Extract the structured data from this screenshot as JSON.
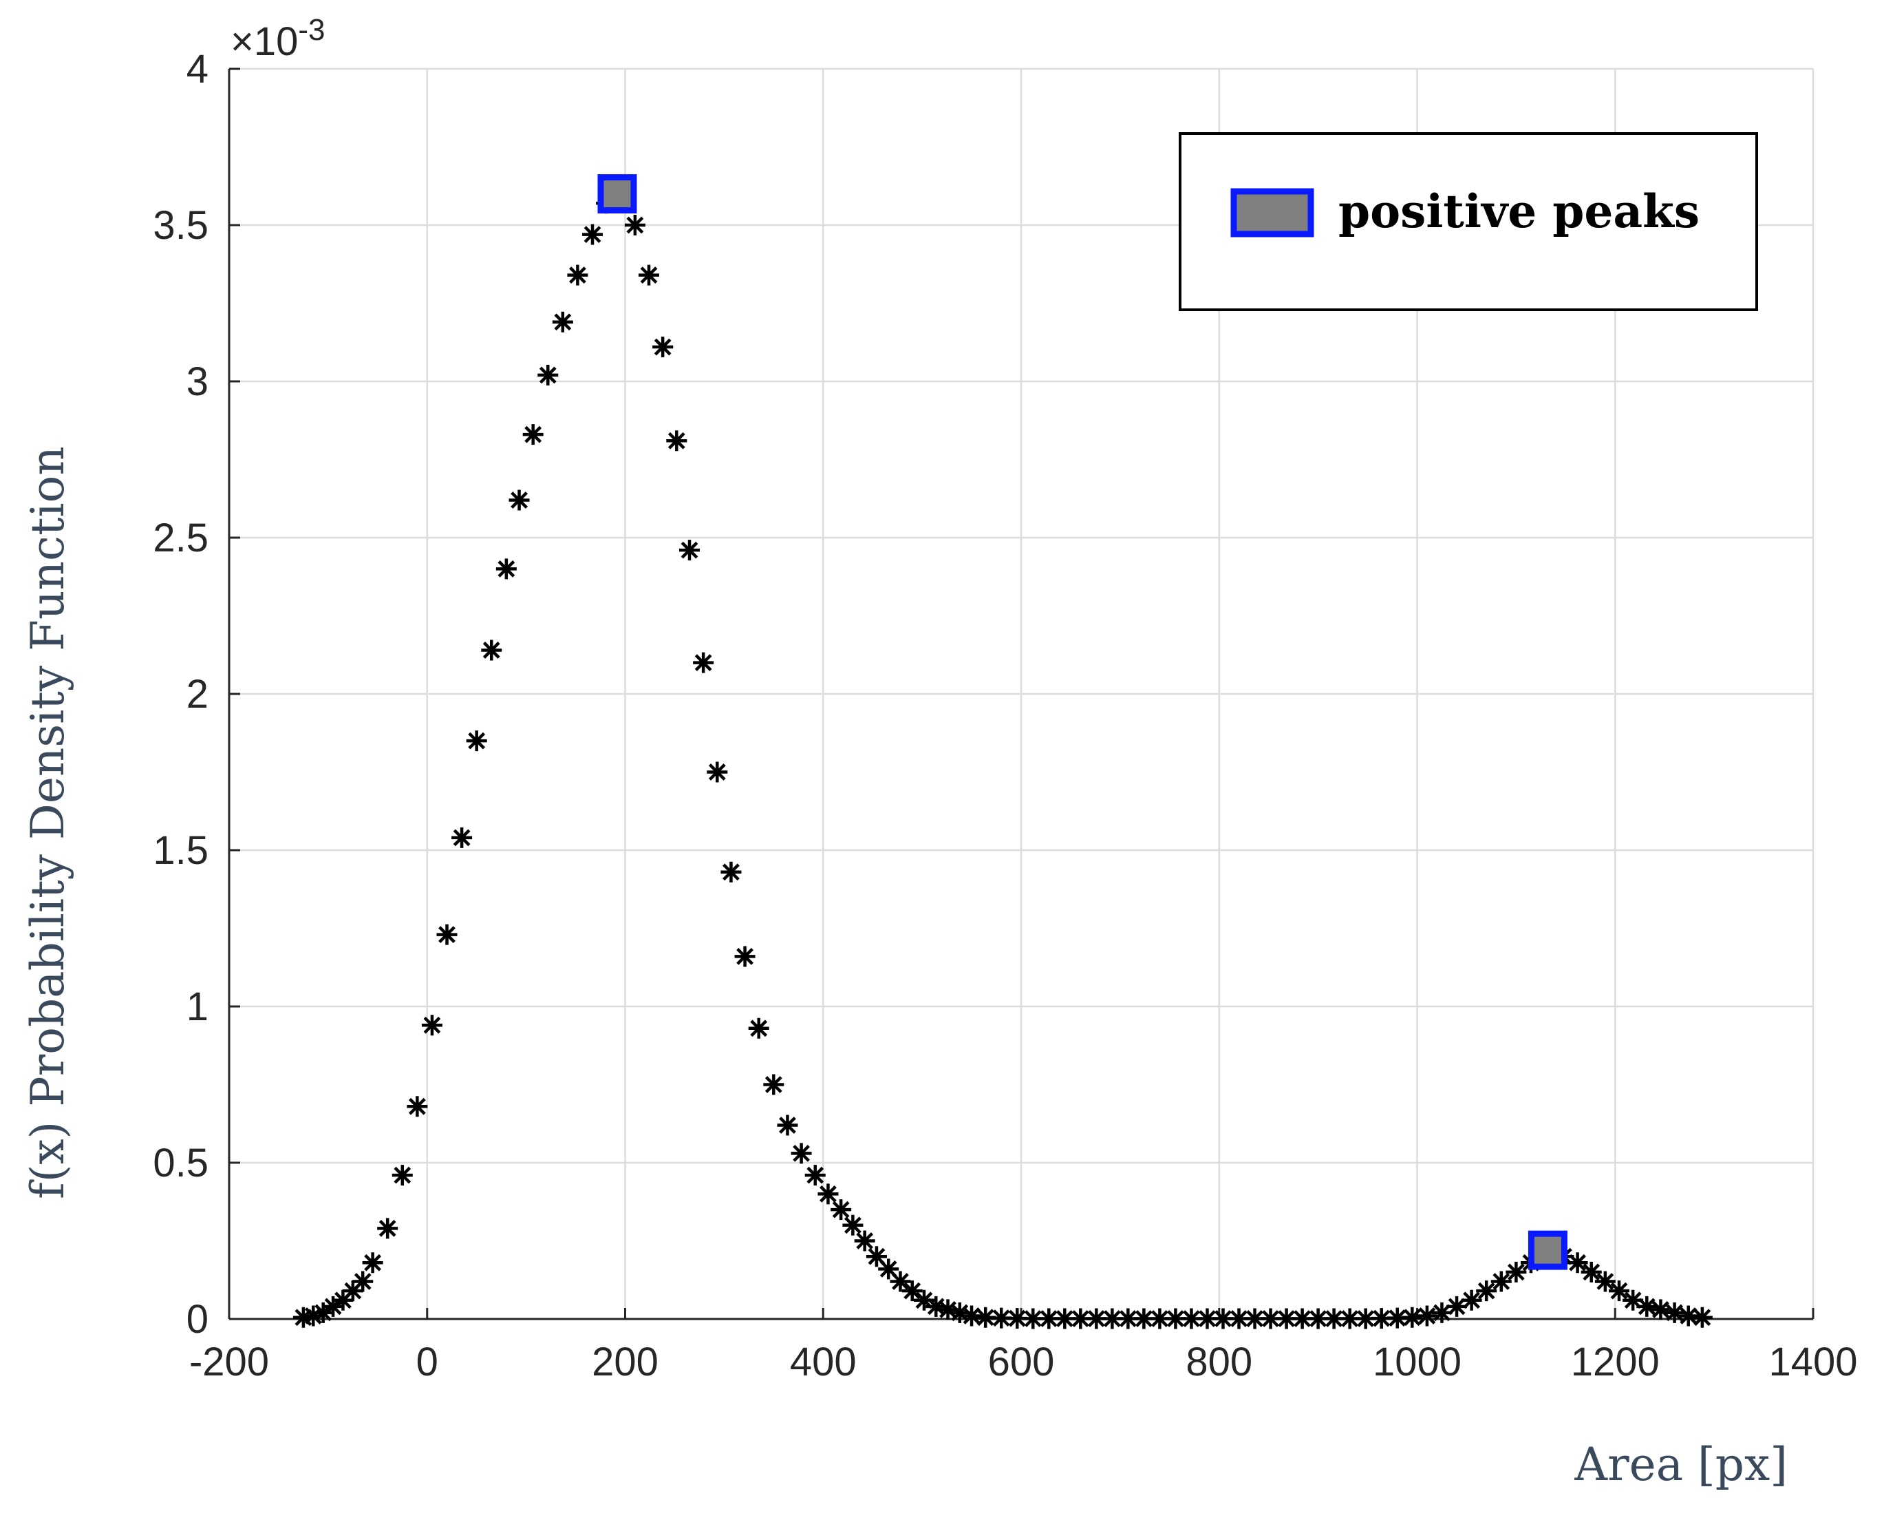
{
  "chart_data": {
    "type": "scatter",
    "xlabel": "Area [px]",
    "ylabel": "f(x) Probability  Density  Function",
    "y_exponent_label": "×10",
    "y_exponent_power": "-3",
    "xlim": [
      -200,
      1400
    ],
    "ylim": [
      0,
      4
    ],
    "xticks": [
      -200,
      0,
      200,
      400,
      600,
      800,
      1000,
      1200,
      1400
    ],
    "xtick_labels": [
      "-200",
      "0",
      "200",
      "400",
      "600",
      "800",
      "1000",
      "1200",
      "1400"
    ],
    "yticks": [
      0,
      0.5,
      1,
      1.5,
      2,
      2.5,
      3,
      3.5,
      4
    ],
    "ytick_labels": [
      "0",
      "0.5",
      "1",
      "1.5",
      "2",
      "2.5",
      "3",
      "3.5",
      "4"
    ],
    "grid": true,
    "legend_position": "top-right",
    "marker_color": "#000000",
    "peak_edge_color": "#0a1aff",
    "peak_fill_color": "#808080",
    "pdf_points": {
      "x": [
        -125,
        -115,
        -105,
        -95,
        -85,
        -75,
        -65,
        -55,
        -40,
        -25,
        -10,
        5,
        20,
        35,
        50,
        65,
        80,
        93,
        107,
        122,
        137,
        152,
        167,
        181,
        210,
        224,
        238,
        252,
        265,
        279,
        293,
        307,
        321,
        335,
        350,
        364,
        378,
        392,
        405,
        418,
        430,
        442,
        454,
        466,
        478,
        490,
        502,
        514,
        526,
        538,
        550,
        564,
        580,
        596,
        612,
        628,
        644,
        660,
        676,
        692,
        708,
        724,
        740,
        756,
        772,
        788,
        804,
        820,
        836,
        852,
        868,
        884,
        900,
        916,
        932,
        948,
        964,
        980,
        995,
        1010,
        1025,
        1040,
        1055,
        1070,
        1085,
        1100,
        1115,
        1130,
        1148,
        1162,
        1176,
        1190,
        1204,
        1218,
        1232,
        1246,
        1260,
        1274,
        1288
      ],
      "y": [
        0.005,
        0.01,
        0.02,
        0.04,
        0.06,
        0.09,
        0.12,
        0.18,
        0.29,
        0.46,
        0.68,
        0.94,
        1.23,
        1.54,
        1.85,
        2.14,
        2.4,
        2.62,
        2.83,
        3.02,
        3.19,
        3.34,
        3.47,
        3.57,
        3.5,
        3.34,
        3.11,
        2.81,
        2.46,
        2.1,
        1.75,
        1.43,
        1.16,
        0.93,
        0.75,
        0.62,
        0.53,
        0.46,
        0.4,
        0.35,
        0.3,
        0.25,
        0.2,
        0.16,
        0.12,
        0.09,
        0.06,
        0.04,
        0.03,
        0.02,
        0.01,
        0.005,
        0.003,
        0.002,
        0.001,
        0.001,
        0.001,
        0.001,
        0.001,
        0.001,
        0.001,
        0.001,
        0.001,
        0.001,
        0.001,
        0.001,
        0.001,
        0.001,
        0.001,
        0.001,
        0.001,
        0.001,
        0.001,
        0.001,
        0.001,
        0.001,
        0.002,
        0.003,
        0.005,
        0.01,
        0.02,
        0.04,
        0.06,
        0.09,
        0.12,
        0.15,
        0.18,
        0.2,
        0.2,
        0.18,
        0.15,
        0.12,
        0.09,
        0.06,
        0.04,
        0.03,
        0.02,
        0.01,
        0.005
      ]
    },
    "series": [
      {
        "name": "positive peaks",
        "x": [
          192,
          1132
        ],
        "y": [
          3.6,
          0.22
        ]
      }
    ]
  }
}
